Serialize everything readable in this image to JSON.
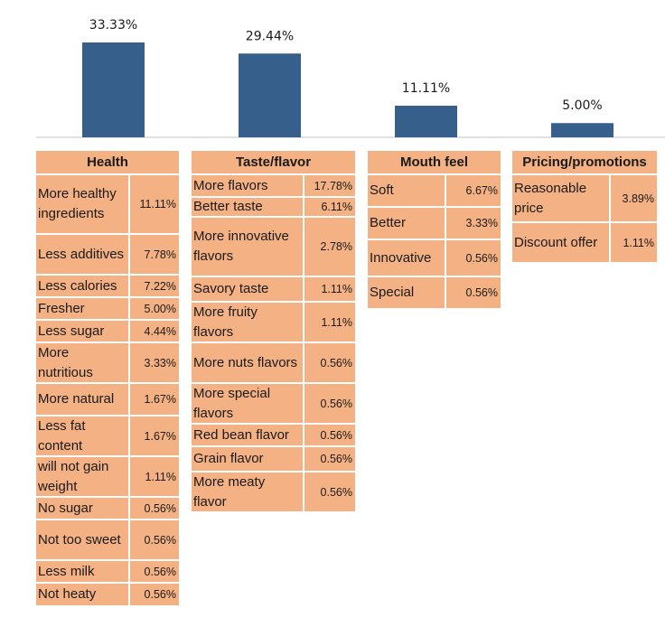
{
  "chart_data": {
    "type": "bar",
    "categories": [
      "Health",
      "Taste/flavor",
      "Mouth feel",
      "Pricing/promotions"
    ],
    "values": [
      33.33,
      29.44,
      11.11,
      5.0
    ],
    "value_labels": [
      "33.33%",
      "29.44%",
      "11.11%",
      "5.00%"
    ],
    "title": "",
    "xlabel": "",
    "ylabel": "",
    "ylim": [
      0,
      35
    ],
    "colors": {
      "bar": "#365f8c",
      "cell": "#f4b183"
    }
  },
  "tables": [
    {
      "header": "Health",
      "rows": [
        {
          "label": "More healthy ingredients",
          "value": "11.11%"
        },
        {
          "label": "Less additives",
          "value": "7.78%"
        },
        {
          "label": "Less calories",
          "value": "7.22%"
        },
        {
          "label": "Fresher",
          "value": "5.00%"
        },
        {
          "label": "Less sugar",
          "value": "4.44%"
        },
        {
          "label": "More nutritious",
          "value": "3.33%"
        },
        {
          "label": "More natural",
          "value": "1.67%"
        },
        {
          "label": "Less fat content",
          "value": "1.67%"
        },
        {
          "label": "will not gain weight",
          "value": "1.11%"
        },
        {
          "label": "No sugar",
          "value": "0.56%"
        },
        {
          "label": "Not too sweet",
          "value": "0.56%"
        },
        {
          "label": "Less milk",
          "value": "0.56%"
        },
        {
          "label": "Not heaty",
          "value": "0.56%"
        }
      ]
    },
    {
      "header": "Taste/flavor",
      "rows": [
        {
          "label": "More flavors",
          "value": "17.78%"
        },
        {
          "label": "Better taste",
          "value": "6.11%"
        },
        {
          "label": "More innovative flavors",
          "value": "2.78%"
        },
        {
          "label": "Savory taste",
          "value": "1.11%"
        },
        {
          "label": "More fruity flavors",
          "value": "1.11%"
        },
        {
          "label": "More nuts flavors",
          "value": "0.56%"
        },
        {
          "label": "More special flavors",
          "value": "0.56%"
        },
        {
          "label": "Red bean flavor",
          "value": "0.56%"
        },
        {
          "label": "Grain flavor",
          "value": "0.56%"
        },
        {
          "label": "More meaty flavor",
          "value": "0.56%"
        }
      ]
    },
    {
      "header": "Mouth feel",
      "rows": [
        {
          "label": "Soft",
          "value": "6.67%"
        },
        {
          "label": "Better",
          "value": "3.33%"
        },
        {
          "label": "Innovative",
          "value": "0.56%"
        },
        {
          "label": "Special",
          "value": "0.56%"
        }
      ]
    },
    {
      "header": "Pricing/promotions",
      "rows": [
        {
          "label": "Reasonable price",
          "value": "3.89%"
        },
        {
          "label": "Discount offer",
          "value": "1.11%"
        }
      ]
    }
  ]
}
